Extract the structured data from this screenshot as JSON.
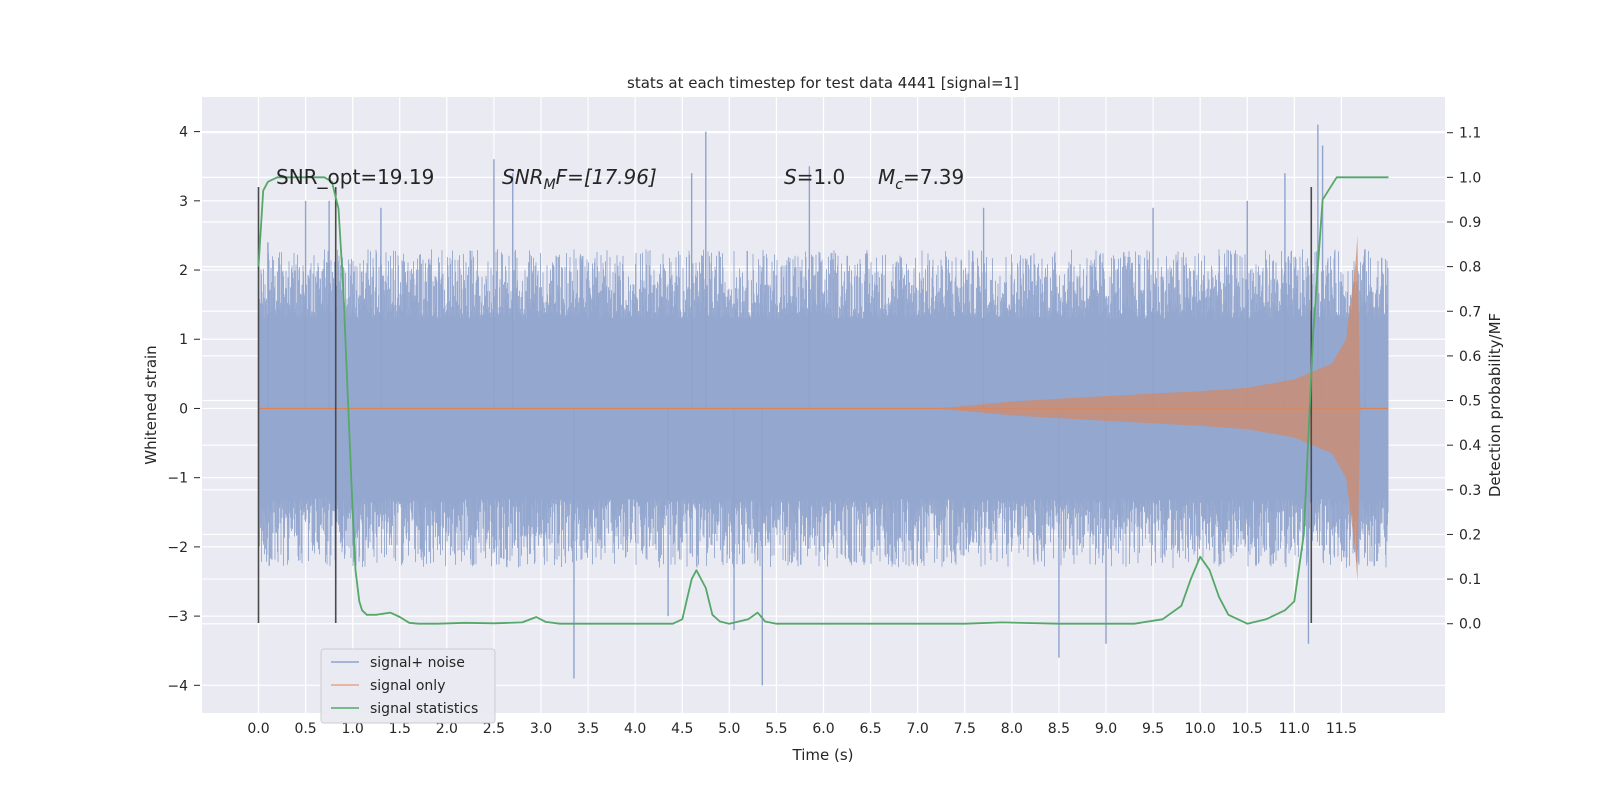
{
  "chart_data": {
    "type": "line",
    "title": "stats at each timestep for test data 4441 [signal=1]",
    "xlabel": "Time (s)",
    "ylabel": "Whitened strain",
    "y2label": "Detection probability/MF",
    "xlim": [
      -0.6,
      12.6
    ],
    "ylim": [
      -4.4,
      4.5
    ],
    "y2lim": [
      -0.2,
      1.18
    ],
    "x_ticks": [
      "0.0",
      "0.5",
      "1.0",
      "1.5",
      "2.0",
      "2.5",
      "3.0",
      "3.5",
      "4.0",
      "4.5",
      "5.0",
      "5.5",
      "6.0",
      "6.5",
      "7.0",
      "7.5",
      "8.0",
      "8.5",
      "9.0",
      "9.5",
      "10.0",
      "10.5",
      "11.0",
      "11.5"
    ],
    "y_ticks": [
      "4",
      "3",
      "2",
      "1",
      "0",
      "−1",
      "−2",
      "−3",
      "−4"
    ],
    "y_tick_values": [
      4,
      3,
      2,
      1,
      0,
      -1,
      -2,
      -3,
      -4
    ],
    "y2_ticks": [
      "1.1",
      "1.0",
      "0.9",
      "0.8",
      "0.7",
      "0.6",
      "0.5",
      "0.4",
      "0.3",
      "0.2",
      "0.1",
      "0.0"
    ],
    "y2_tick_values": [
      1.1,
      1.0,
      0.9,
      0.8,
      0.7,
      0.6,
      0.5,
      0.4,
      0.3,
      0.2,
      0.1,
      0.0
    ],
    "grid": true,
    "legend_position": "lower-left",
    "annotations": {
      "snr_opt": "SNR_opt=19.19",
      "snr_mf_sym": "SNR",
      "snr_mf_sub": "M",
      "snr_mf_rest": "F=[17.96]",
      "s_sym": "S",
      "s_rest": "=1.0",
      "mc_sym": "M",
      "mc_sub": "c",
      "mc_rest": "=7.39"
    },
    "vertical_markers": {
      "x": [
        0.0,
        0.82,
        11.18
      ],
      "y_range": [
        -3.1,
        3.2
      ]
    },
    "series": [
      {
        "name": "signal+ noise",
        "color": "#8fa3cc",
        "x_range": [
          0.0,
          12.0
        ],
        "envelope_upper_typical": 2.0,
        "envelope_lower_typical": -2.0,
        "spike_x": [
          0.1,
          0.5,
          0.75,
          1.3,
          2.5,
          2.7,
          3.35,
          4.35,
          4.6,
          4.75,
          5.05,
          5.35,
          5.85,
          7.7,
          8.5,
          9.0,
          9.5,
          10.5,
          10.9,
          11.15,
          11.25,
          11.3,
          11.75
        ],
        "spike_y": [
          2.4,
          3.0,
          3.0,
          2.9,
          3.6,
          3.4,
          -3.9,
          -3.0,
          3.4,
          4.0,
          -3.2,
          -4.0,
          3.5,
          2.9,
          -3.6,
          -3.4,
          2.9,
          3.0,
          3.4,
          -3.4,
          4.1,
          3.8,
          2.3
        ]
      },
      {
        "name": "signal only",
        "color": "#dd8452",
        "chirp_start_x": 7.2,
        "chirp_end_x": 11.67,
        "amplitude_at_x": [
          [
            7.2,
            0.0
          ],
          [
            8.0,
            0.1
          ],
          [
            9.0,
            0.18
          ],
          [
            10.0,
            0.25
          ],
          [
            10.5,
            0.3
          ],
          [
            11.0,
            0.42
          ],
          [
            11.4,
            0.65
          ],
          [
            11.55,
            1.0
          ],
          [
            11.65,
            2.1
          ],
          [
            11.67,
            2.5
          ],
          [
            11.7,
            0.0
          ]
        ]
      },
      {
        "name": "signal statistics",
        "color": "#55a868",
        "x": [
          0.0,
          0.05,
          0.1,
          0.2,
          0.3,
          0.5,
          0.7,
          0.78,
          0.85,
          0.9,
          0.95,
          1.0,
          1.03,
          1.07,
          1.1,
          1.15,
          1.25,
          1.4,
          1.5,
          1.6,
          1.7,
          1.9,
          2.2,
          2.5,
          2.8,
          2.95,
          3.05,
          3.2,
          3.6,
          4.0,
          4.4,
          4.5,
          4.6,
          4.65,
          4.75,
          4.82,
          4.9,
          5.0,
          5.2,
          5.3,
          5.38,
          5.5,
          6.0,
          7.0,
          7.5,
          7.9,
          8.5,
          9.0,
          9.3,
          9.6,
          9.8,
          9.9,
          10.0,
          10.1,
          10.2,
          10.3,
          10.5,
          10.7,
          10.9,
          11.0,
          11.1,
          11.2,
          11.3,
          11.45,
          11.6,
          12.0
        ],
        "y": [
          0.8,
          0.97,
          0.99,
          1.0,
          1.0,
          1.0,
          1.0,
          0.99,
          0.93,
          0.75,
          0.5,
          0.25,
          0.12,
          0.05,
          0.03,
          0.02,
          0.02,
          0.025,
          0.015,
          0.002,
          0.0,
          0.0,
          0.002,
          0.001,
          0.003,
          0.015,
          0.004,
          0.0,
          0.0,
          0.0,
          0.0,
          0.01,
          0.1,
          0.12,
          0.08,
          0.02,
          0.005,
          0.0,
          0.01,
          0.025,
          0.005,
          0.0,
          0.0,
          0.0,
          0.0,
          0.003,
          0.0,
          0.0,
          0.0,
          0.01,
          0.04,
          0.1,
          0.15,
          0.12,
          0.06,
          0.02,
          0.0,
          0.01,
          0.03,
          0.05,
          0.2,
          0.65,
          0.95,
          1.0,
          1.0,
          1.0
        ]
      }
    ]
  }
}
